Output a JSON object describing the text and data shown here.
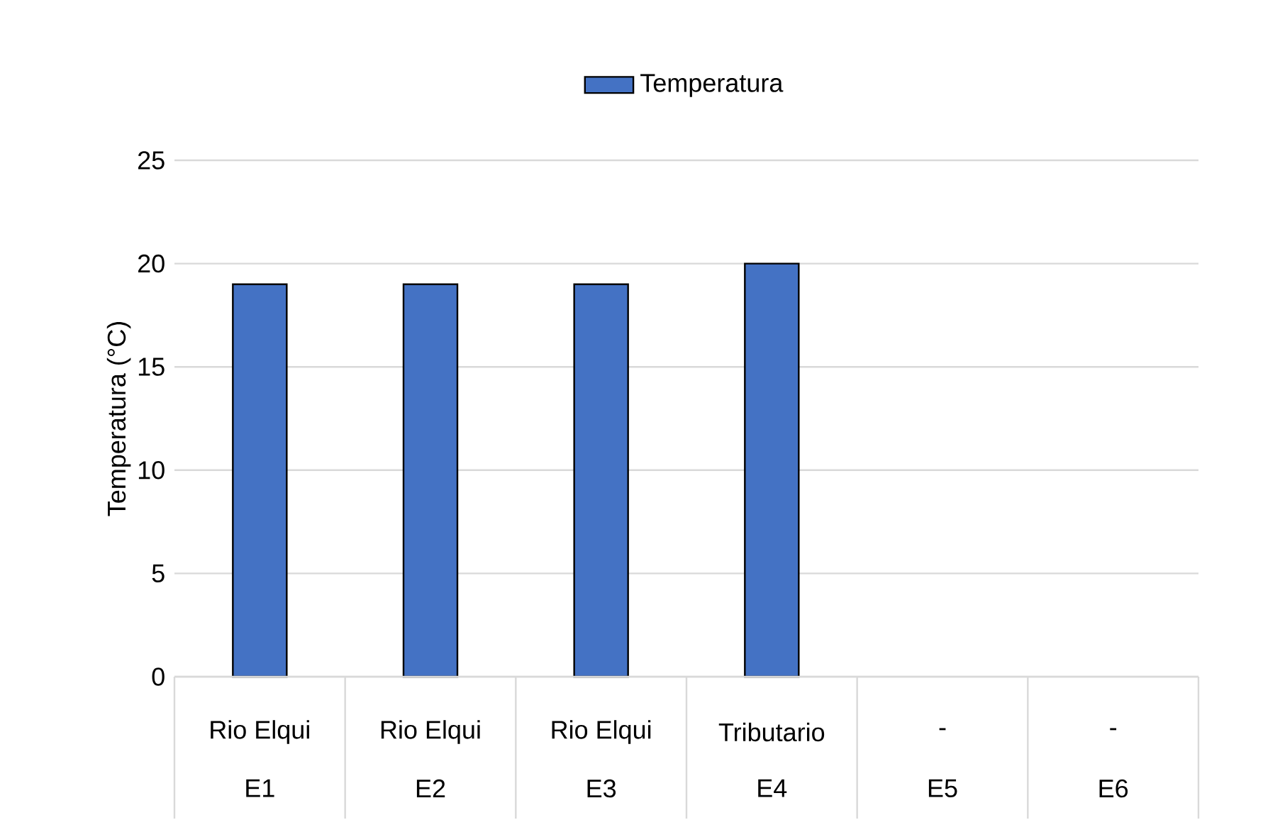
{
  "chart_data": {
    "type": "bar",
    "ylabel": "Temperatura (°C)",
    "categories": [
      "E1",
      "E2",
      "E3",
      "E4",
      "E5",
      "E6"
    ],
    "series": [
      {
        "name": "Temperatura",
        "color": "#4472c4",
        "values": [
          19,
          19,
          19,
          20,
          null,
          null
        ]
      }
    ],
    "annotations": [
      "Rio Elqui",
      "Rio Elqui",
      "Rio Elqui",
      "Tributario",
      "-",
      "-"
    ],
    "ylim": [
      0,
      25
    ],
    "yticks": [
      0,
      5,
      10,
      15,
      20,
      25
    ],
    "grid": "y",
    "legend": "top"
  }
}
